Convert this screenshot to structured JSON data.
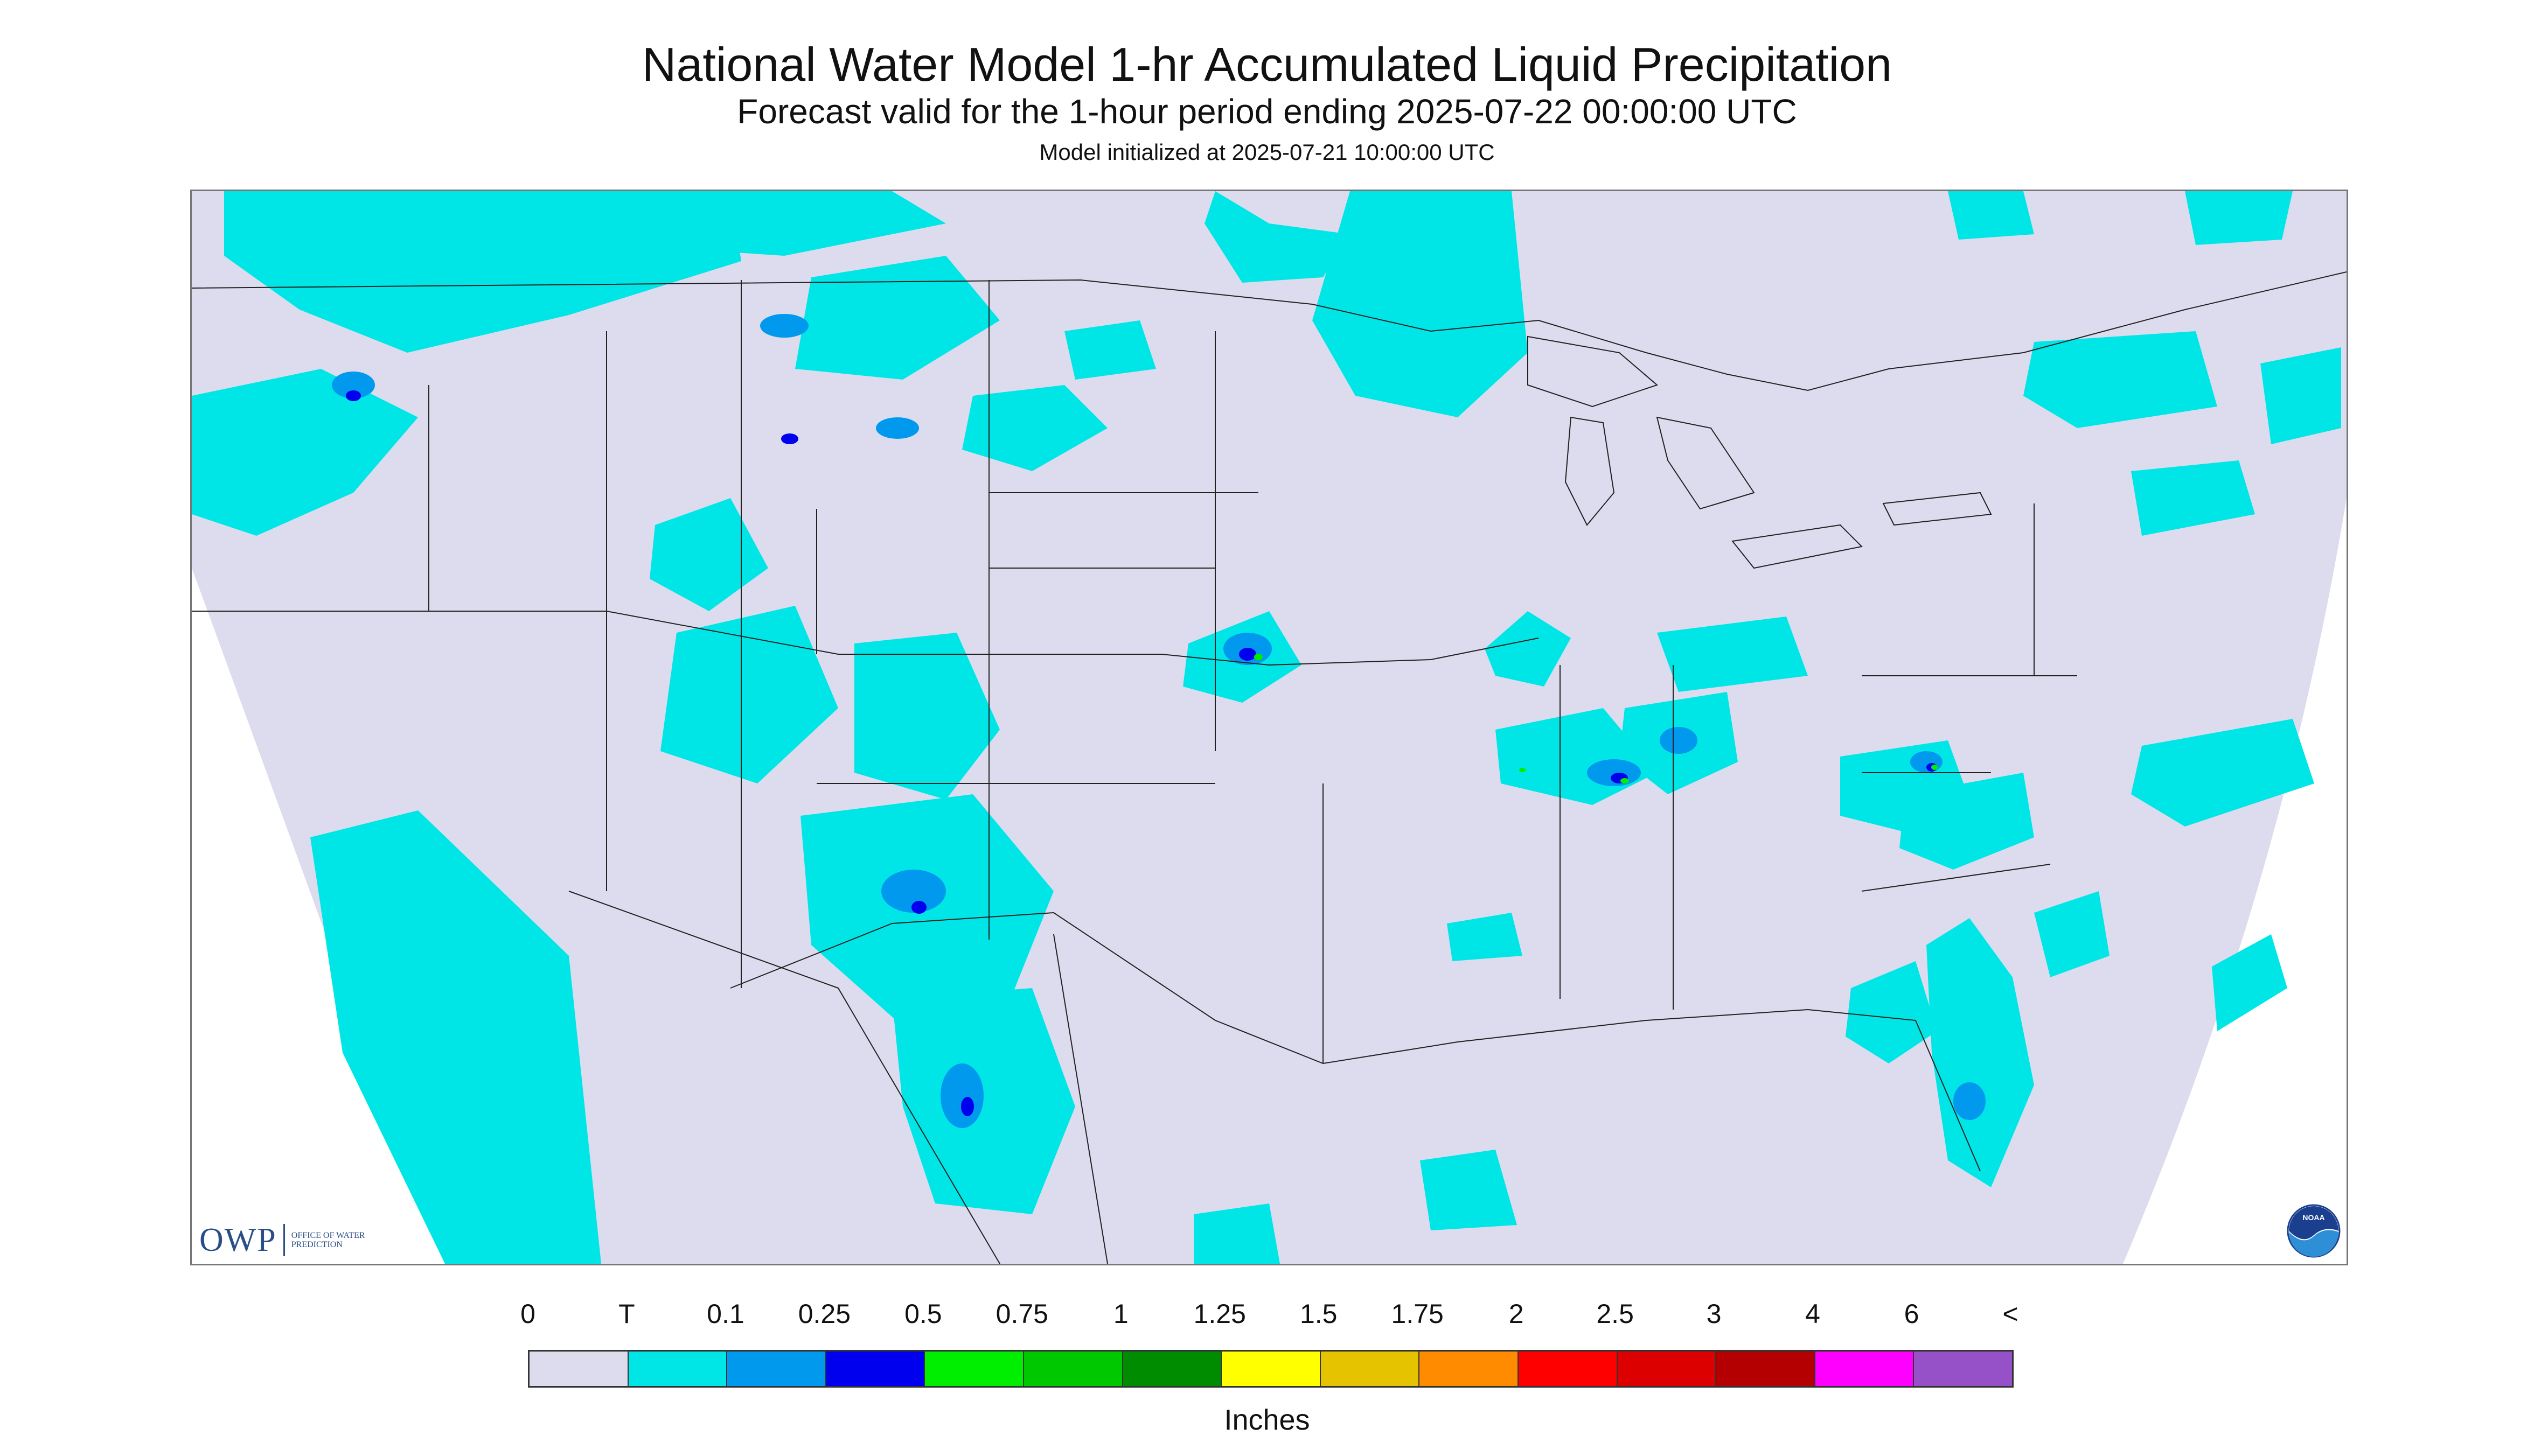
{
  "header": {
    "title": "National Water Model 1-hr Accumulated Liquid Precipitation",
    "subtitle": "Forecast valid for the 1-hour period ending 2025-07-22 00:00:00 UTC",
    "init": "Model initialized at 2025-07-21 10:00:00 UTC"
  },
  "map": {
    "background_color": "#dcdcee",
    "outside_color": "#ffffff",
    "boundary_color": "#222222",
    "precip_colors": {
      "trace": "#00e6e6",
      "light": "#0099ee",
      "moderate": "#0000ee",
      "heavy": "#00ee00",
      "very_heavy": "#00aa00"
    }
  },
  "logos": {
    "owp": {
      "letters": "OWP",
      "name": "Office of Water Prediction"
    },
    "noaa": {
      "text": "NOAA"
    }
  },
  "legend": {
    "labels": [
      "0",
      "T",
      "0.1",
      "0.25",
      "0.5",
      "0.75",
      "1",
      "1.25",
      "1.5",
      "1.75",
      "2",
      "2.5",
      "3",
      "4",
      "6",
      "<"
    ],
    "colors": [
      "#dcdcee",
      "#00e6e6",
      "#0099ee",
      "#0000ee",
      "#00ee00",
      "#00c800",
      "#008c00",
      "#ffff00",
      "#e6c300",
      "#ff8c00",
      "#ff0000",
      "#dc0000",
      "#b40000",
      "#ff00ff",
      "#9650c8"
    ],
    "unit": "Inches"
  }
}
